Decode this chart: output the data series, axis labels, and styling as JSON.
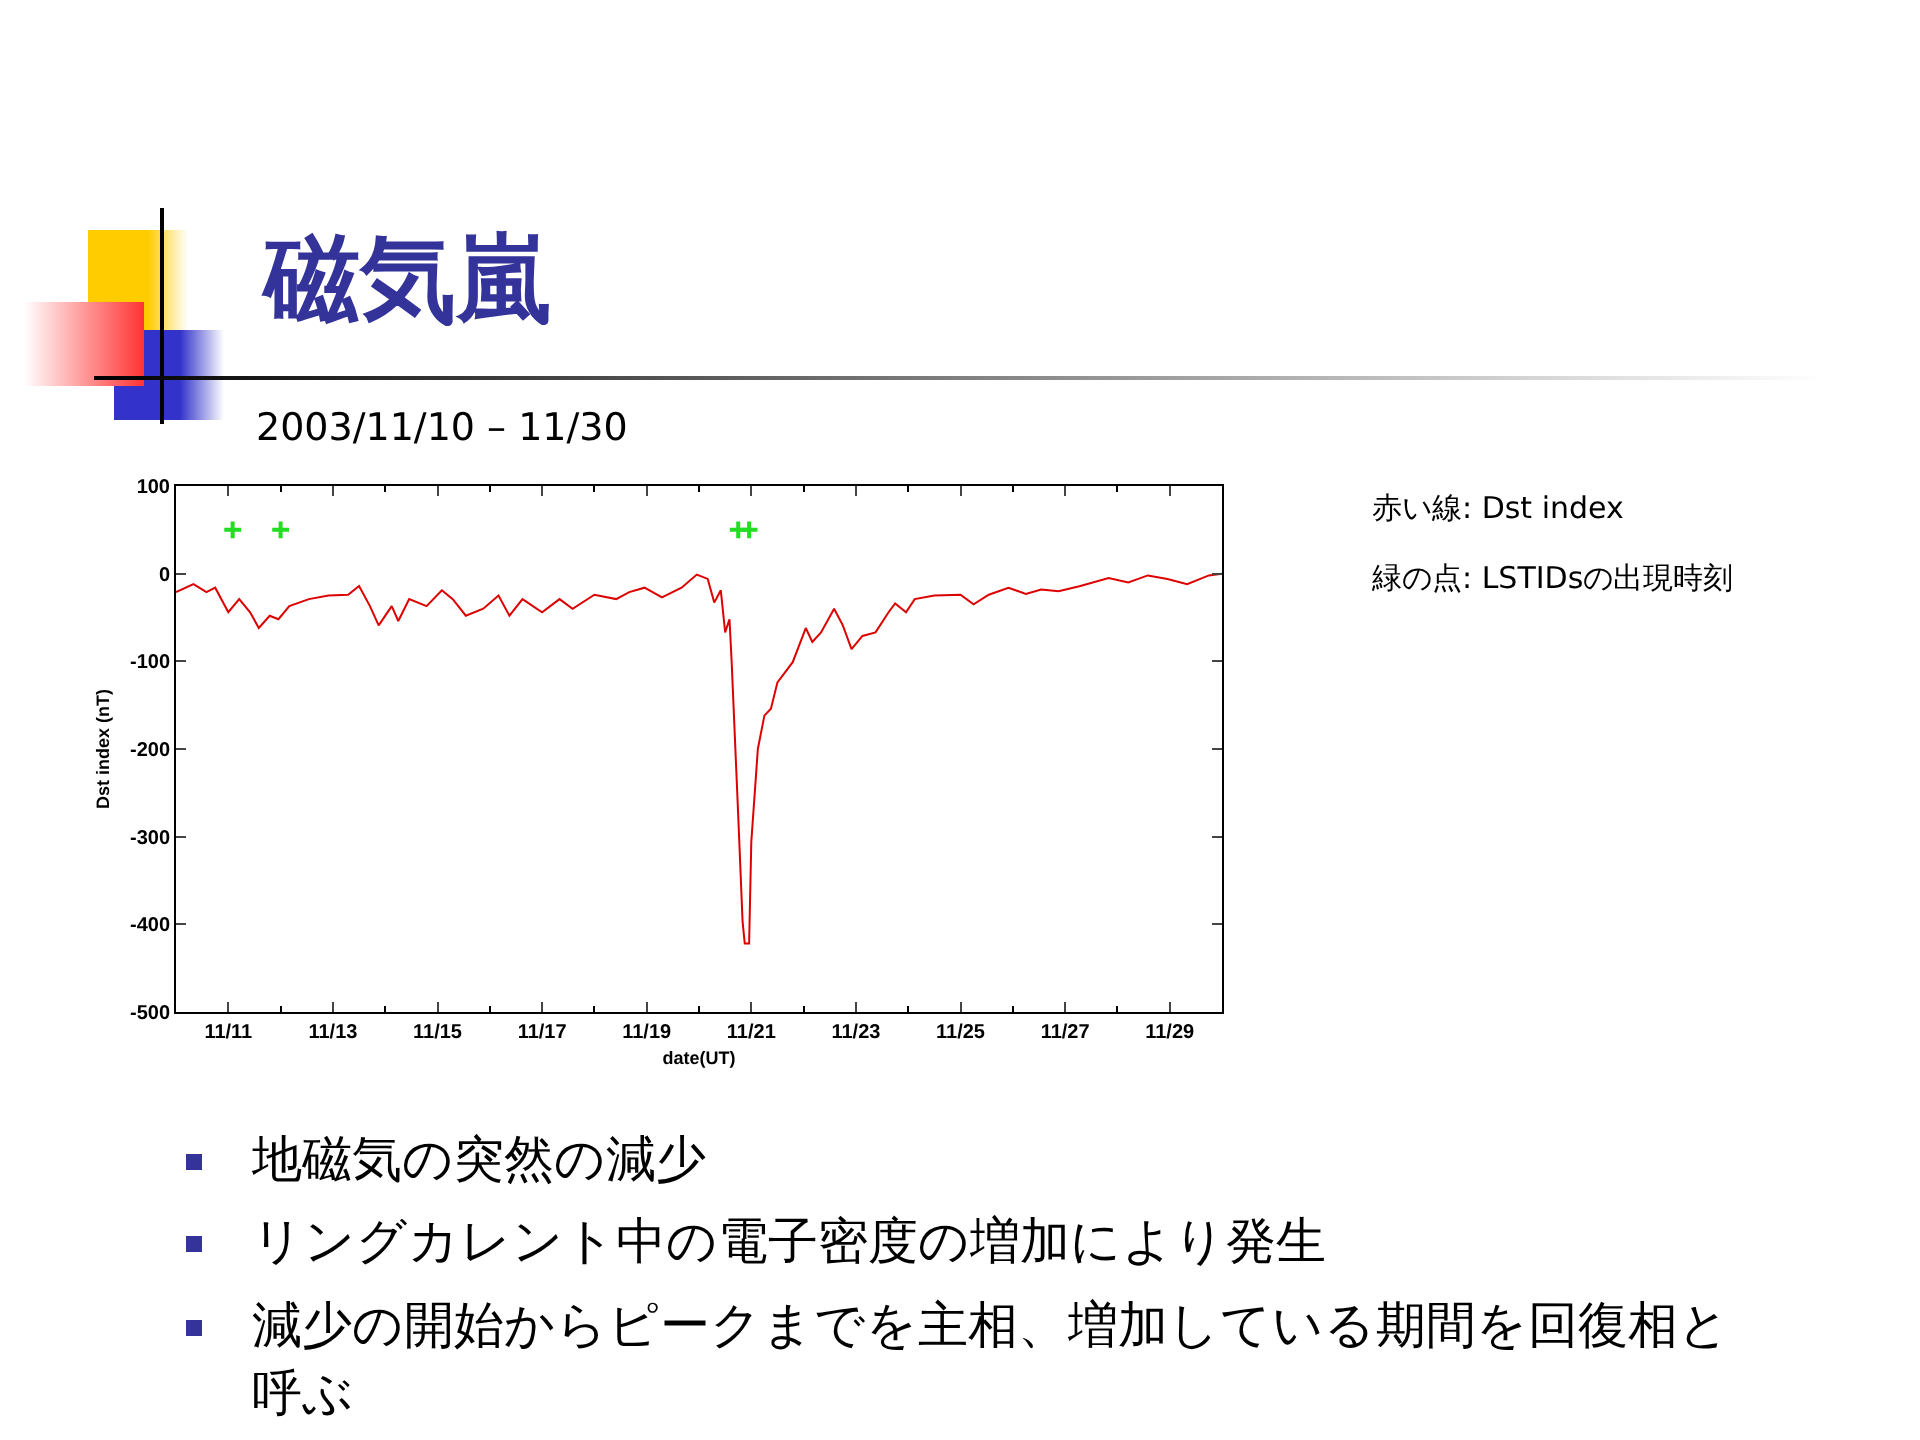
{
  "chart_data": {
    "type": "line",
    "title": "磁気嵐",
    "subtitle": "2003/11/10 – 11/30",
    "xlabel": "date(UT)",
    "ylabel": "Dst index (nT)",
    "xlim": [
      "2003-11-10",
      "2003-11-30"
    ],
    "xticks": [
      {
        "value": "2003-11-11",
        "label": "11/11"
      },
      {
        "value": "2003-11-13",
        "label": "11/13"
      },
      {
        "value": "2003-11-15",
        "label": "11/15"
      },
      {
        "value": "2003-11-17",
        "label": "11/17"
      },
      {
        "value": "2003-11-19",
        "label": "11/19"
      },
      {
        "value": "2003-11-21",
        "label": "11/21"
      },
      {
        "value": "2003-11-23",
        "label": "11/23"
      },
      {
        "value": "2003-11-25",
        "label": "11/25"
      },
      {
        "value": "2003-11-27",
        "label": "11/27"
      },
      {
        "value": "2003-11-29",
        "label": "11/29"
      }
    ],
    "ylim": [
      -500,
      100
    ],
    "yticks": [
      -500,
      -400,
      -300,
      -200,
      -100,
      0,
      100
    ],
    "grid": false,
    "legend": false,
    "series": [
      {
        "color": "#dd0000",
        "line_style": "solid",
        "x": [
          "2003-11-10T00:00",
          "2003-11-10T08:00",
          "2003-11-10T14:00",
          "2003-11-10T18:00",
          "2003-11-11T00:00",
          "2003-11-11T05:00",
          "2003-11-11T10:00",
          "2003-11-11T14:00",
          "2003-11-11T19:00",
          "2003-11-11T23:00",
          "2003-11-12T04:00",
          "2003-11-12T13:00",
          "2003-11-12T22:00",
          "2003-11-13T07:00",
          "2003-11-13T12:00",
          "2003-11-13T17:00",
          "2003-11-13T21:00",
          "2003-11-14T03:00",
          "2003-11-14T06:00",
          "2003-11-14T11:00",
          "2003-11-14T19:00",
          "2003-11-15T02:00",
          "2003-11-15T07:00",
          "2003-11-15T13:00",
          "2003-11-15T21:00",
          "2003-11-16T04:00",
          "2003-11-16T09:00",
          "2003-11-16T15:00",
          "2003-11-17T00:00",
          "2003-11-17T08:00",
          "2003-11-17T14:00",
          "2003-11-18T00:00",
          "2003-11-18T10:00",
          "2003-11-18T16:00",
          "2003-11-18T23:00",
          "2003-11-19T07:00",
          "2003-11-19T16:00",
          "2003-11-19T23:00",
          "2003-11-20T04:00",
          "2003-11-20T07:00",
          "2003-11-20T10:00",
          "2003-11-20T12:00",
          "2003-11-20T14:00",
          "2003-11-20T15:00",
          "2003-11-20T18:00",
          "2003-11-20T20:00",
          "2003-11-20T21:00",
          "2003-11-20T23:00",
          "2003-11-21T00:00",
          "2003-11-21T03:00",
          "2003-11-21T06:00",
          "2003-11-21T09:00",
          "2003-11-21T12:00",
          "2003-11-21T19:00",
          "2003-11-22T01:00",
          "2003-11-22T04:00",
          "2003-11-22T08:00",
          "2003-11-22T14:00",
          "2003-11-22T18:00",
          "2003-11-22T22:00",
          "2003-11-23T03:00",
          "2003-11-23T09:00",
          "2003-11-23T15:00",
          "2003-11-23T18:00",
          "2003-11-23T23:00",
          "2003-11-24T03:00",
          "2003-11-24T12:00",
          "2003-11-25T00:00",
          "2003-11-25T06:00",
          "2003-11-25T13:00",
          "2003-11-25T22:00",
          "2003-11-26T06:00",
          "2003-11-26T13:00",
          "2003-11-26T21:00",
          "2003-11-27T07:00",
          "2003-11-27T20:00",
          "2003-11-28T05:00",
          "2003-11-28T14:00",
          "2003-11-28T23:00",
          "2003-11-29T08:00",
          "2003-11-29T18:00",
          "2003-11-30T00:00"
        ],
        "values": [
          -21,
          -12,
          -21,
          -16,
          -44,
          -29,
          -44,
          -62,
          -48,
          -52,
          -37,
          -29,
          -25,
          -24,
          -14,
          -37,
          -59,
          -37,
          -54,
          -29,
          -37,
          -19,
          -29,
          -48,
          -40,
          -25,
          -48,
          -29,
          -44,
          -29,
          -40,
          -24,
          -29,
          -21,
          -16,
          -27,
          -16,
          -1,
          -6,
          -33,
          -19,
          -67,
          -52,
          -101,
          -276,
          -397,
          -422,
          -422,
          -306,
          -200,
          -162,
          -154,
          -124,
          -101,
          -62,
          -78,
          -67,
          -40,
          -59,
          -86,
          -71,
          -67,
          -44,
          -34,
          -44,
          -29,
          -25,
          -24,
          -35,
          -24,
          -16,
          -23,
          -18,
          -20,
          -14,
          -5,
          -10,
          -2,
          -6,
          -12,
          -2,
          0
        ]
      },
      {
        "type": "scatter",
        "color": "#22dd22",
        "marker": "cross",
        "x": [
          "2003-11-11T02:00",
          "2003-11-12T00:00",
          "2003-11-20T18:00",
          "2003-11-20T23:00"
        ],
        "values": [
          50,
          50,
          50,
          50
        ]
      }
    ],
    "annotations": [
      "赤い線: Dst index",
      "緑の点: LSTIDsの出現時刻",
      "地磁気の突然の減少",
      "リングカレント中の電子密度の増加により発生",
      "減少の開始からピークまでを主相、増加している期間を回復相と呼ぶ"
    ]
  }
}
